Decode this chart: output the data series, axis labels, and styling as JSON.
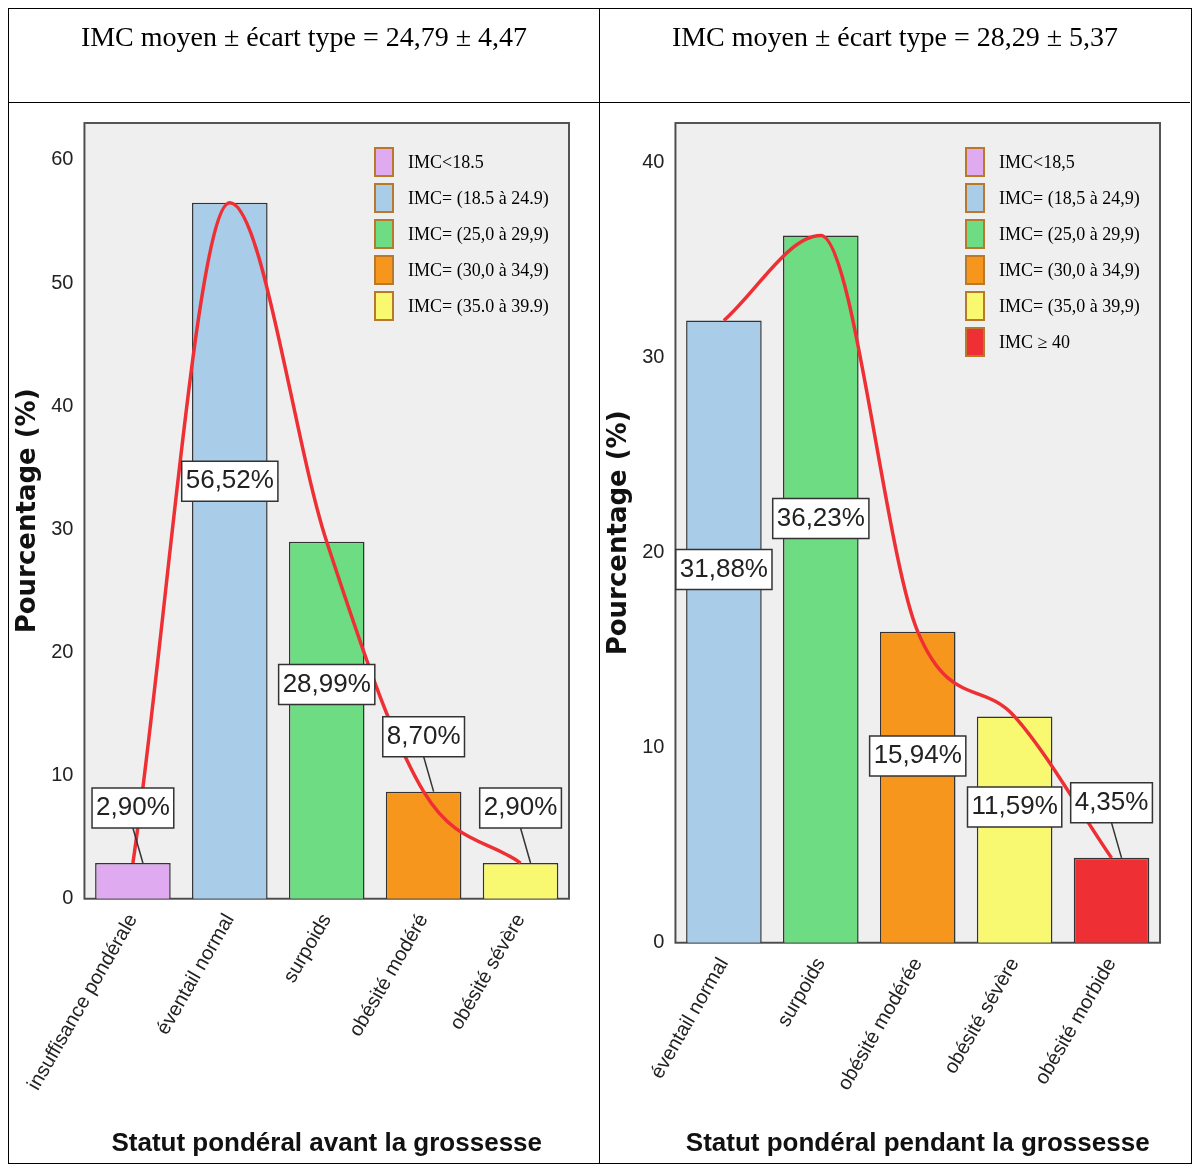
{
  "chart_data": [
    {
      "type": "bar",
      "title": "IMC moyen ± écart type = 24,79 ± 4,47",
      "xlabel": "Statut pondéral avant la grossesse",
      "ylabel": "Pourcentage (%)",
      "categories": [
        "insuffisance pondérale",
        "éventail normal",
        "surpoids",
        "obésité modéré",
        "obésité sévère"
      ],
      "stacked": true,
      "legend": "top right",
      "grid": false,
      "ylim": [
        0,
        63
      ],
      "yticks": [
        0,
        10,
        20,
        30,
        40,
        50,
        60
      ],
      "series": [
        {
          "name": "IMC<18.5",
          "color": "#e0aaf0",
          "values": [
            2.9,
            null,
            null,
            null,
            null
          ],
          "value_labels": [
            "2,90%",
            null,
            null,
            null,
            null
          ]
        },
        {
          "name": "IMC= (18.5 à 24.9)",
          "color": "#a9cce8",
          "values": [
            null,
            56.52,
            null,
            null,
            null
          ],
          "value_labels": [
            null,
            "56,52%",
            null,
            null,
            null
          ]
        },
        {
          "name": "IMC= (25,0 à 29,9)",
          "color": "#6edc82",
          "values": [
            null,
            null,
            28.99,
            null,
            null
          ],
          "value_labels": [
            null,
            null,
            "28,99%",
            null,
            null
          ]
        },
        {
          "name": "IMC= (30,0 à 34,9)",
          "color": "#f7961c",
          "values": [
            null,
            null,
            null,
            8.7,
            null
          ],
          "value_labels": [
            null,
            null,
            null,
            "8,70%",
            null
          ]
        },
        {
          "name": "IMC= (35.0 à 39.9)",
          "color": "#f9f871",
          "values": [
            null,
            null,
            null,
            null,
            2.9
          ],
          "value_labels": [
            null,
            null,
            null,
            null,
            "2,90%"
          ]
        },
        {
          "type": "line",
          "color": "#ee3035",
          "values": [
            2.9,
            56.52,
            28.99,
            8.7,
            2.9
          ]
        }
      ]
    },
    {
      "type": "bar",
      "title": "IMC moyen ± écart type = 28,29 ± 5,37",
      "xlabel": "Statut pondéral pendant la grossesse",
      "ylabel": "Pourcentage (%)",
      "categories": [
        "éventail normal",
        "surpoids",
        "obésité modérée",
        "obésité sévère",
        "obésité morbide"
      ],
      "stacked": true,
      "legend": "top right",
      "grid": false,
      "ylim": [
        0,
        42
      ],
      "yticks": [
        0,
        10,
        20,
        30,
        40
      ],
      "series": [
        {
          "name": "IMC<18,5",
          "color": "#e0aaf0",
          "values": [
            null,
            null,
            null,
            null,
            null
          ]
        },
        {
          "name": "IMC= (18,5 à 24,9)",
          "color": "#a9cce8",
          "values": [
            31.88,
            null,
            null,
            null,
            null
          ],
          "value_labels": [
            "31,88%",
            null,
            null,
            null,
            null
          ]
        },
        {
          "name": "IMC= (25,0 à 29,9)",
          "color": "#6edc82",
          "values": [
            null,
            36.23,
            null,
            null,
            null
          ],
          "value_labels": [
            null,
            "36,23%",
            null,
            null,
            null
          ]
        },
        {
          "name": "IMC= (30,0 à 34,9)",
          "color": "#f7961c",
          "values": [
            null,
            null,
            15.94,
            null,
            null
          ],
          "value_labels": [
            null,
            null,
            "15,94%",
            null,
            null
          ]
        },
        {
          "name": "IMC= (35,0 à 39,9)",
          "color": "#f9f871",
          "values": [
            null,
            null,
            null,
            11.59,
            null
          ],
          "value_labels": [
            null,
            null,
            null,
            "11,59%",
            null
          ]
        },
        {
          "name": "IMC ≥ 40",
          "color": "#ee3035",
          "values": [
            null,
            null,
            null,
            null,
            4.35
          ],
          "value_labels": [
            null,
            null,
            null,
            null,
            "4,35%"
          ]
        },
        {
          "type": "line",
          "color": "#ee3035",
          "values": [
            31.88,
            36.23,
            15.94,
            11.59,
            4.35
          ]
        }
      ]
    }
  ]
}
